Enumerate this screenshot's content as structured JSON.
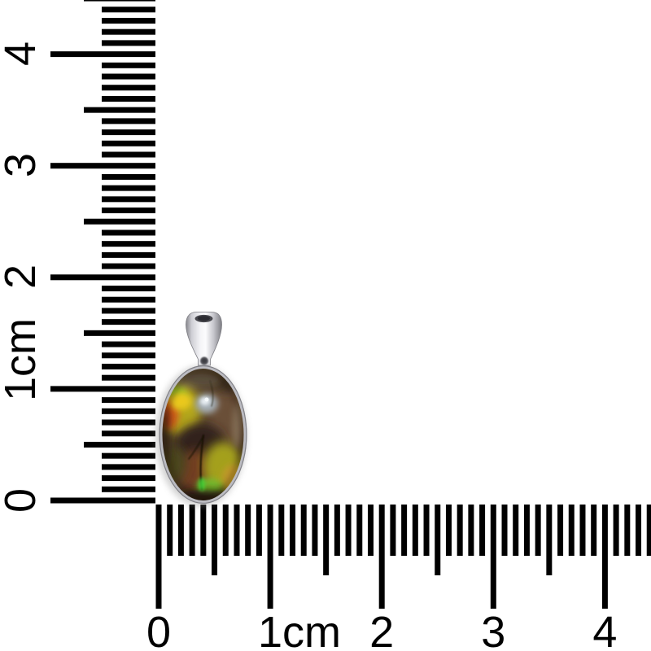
{
  "meta": {
    "background_color": "#ffffff",
    "tick_color": "#000000",
    "label_color": "#000000"
  },
  "rulers": {
    "unit": "cm",
    "vertical": {
      "orientation": "left-edge, numbers rotated 90deg CCW, 0 at bottom",
      "labels": [
        {
          "text": "4"
        },
        {
          "text": "3"
        },
        {
          "text": "2"
        },
        {
          "text": "1cm"
        },
        {
          "text": "0"
        }
      ]
    },
    "horizontal": {
      "orientation": "bottom-edge, 0 at left",
      "labels": [
        {
          "text": "0"
        },
        {
          "text": "1cm"
        },
        {
          "text": "2"
        },
        {
          "text": "3"
        },
        {
          "text": "4"
        }
      ]
    }
  },
  "pendant": {
    "name": "ammolite-cabochon-silver-pendant",
    "approx_size": "stone about 1.0cm wide x 1.2cm tall including bail 1.7cm",
    "bail_color": "#d9d9de",
    "bezel_color": "#b9b9be",
    "stone_palette": {
      "base_brown": "#503d2b",
      "bright_yellow": "#eac81f",
      "orange_flash": "#d2611b",
      "lime_gold": "#b2a51d",
      "silver_sheen": "#a7b1b8",
      "maroon": "#713c22",
      "green_flash": "#7cc42d",
      "olive": "#a4a01b",
      "dark_crack": "#140d06"
    }
  }
}
